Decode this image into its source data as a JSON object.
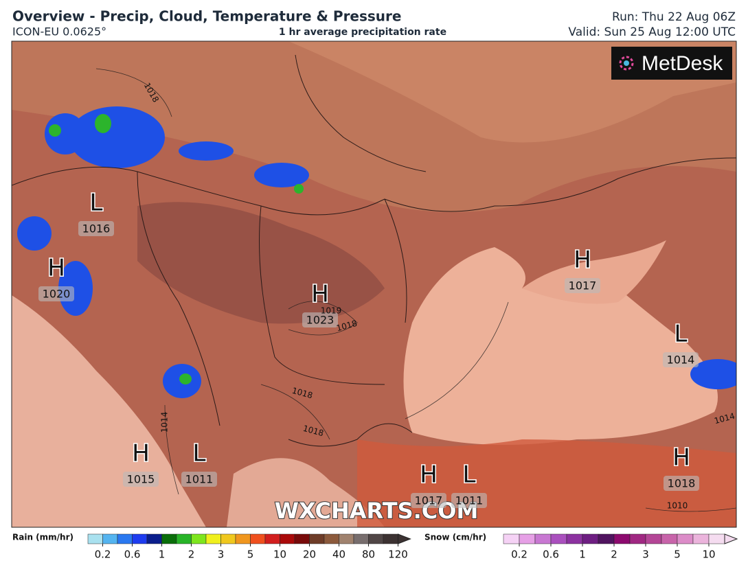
{
  "header": {
    "title": "Overview - Precip, Cloud, Temperature & Pressure",
    "model": "ICON-EU 0.0625°",
    "subtitle": "1 hr average precipitation rate",
    "run": "Run: Thu 22 Aug 06Z",
    "valid": "Valid: Sun 25 Aug 12:00 UTC"
  },
  "logo": "MetDesk",
  "watermark": "WXCHARTS.COM",
  "pressure_centers": [
    {
      "letter": "L",
      "value": 1016
    },
    {
      "letter": "H",
      "value": 1020
    },
    {
      "letter": "H",
      "value": 1023
    },
    {
      "letter": "H",
      "value": 1017
    },
    {
      "letter": "L",
      "value": 1014
    },
    {
      "letter": "H",
      "value": 1015
    },
    {
      "letter": "L",
      "value": 1011
    },
    {
      "letter": "H",
      "value": 1017
    },
    {
      "letter": "L",
      "value": 1011
    },
    {
      "letter": "H",
      "value": 1018
    }
  ],
  "isobar_labels": [
    1018,
    1019,
    1018,
    1018,
    1018,
    1014,
    1014,
    1010
  ],
  "rain_legend": {
    "title": "Rain (mm/hr)",
    "colors": [
      "#a9e1ef",
      "#54b4f0",
      "#2a78f0",
      "#1e3cf0",
      "#0a1e8c",
      "#0a6e0a",
      "#28b428",
      "#7ee61e",
      "#f0f01e",
      "#f0c81e",
      "#f0961e",
      "#f0501e",
      "#d21e1e",
      "#aa0a0a",
      "#780a0a",
      "#6e3c28",
      "#8c5a3c",
      "#a0826e",
      "#786e6e",
      "#504646",
      "#3c3232"
    ],
    "ticks": [
      0.2,
      0.6,
      1,
      2,
      3,
      5,
      10,
      20,
      40,
      80,
      120
    ]
  },
  "snow_legend": {
    "title": "Snow (cm/hr)",
    "colors": [
      "#f5d2f5",
      "#e6a0e6",
      "#c878d2",
      "#aa50be",
      "#8c32a0",
      "#6e1e82",
      "#50145f",
      "#8c0a6e",
      "#a02882",
      "#b44696",
      "#c864aa",
      "#dc8cc8",
      "#ebb4dc",
      "#f5dcf0"
    ],
    "ticks": [
      0.2,
      0.6,
      1,
      2,
      3,
      5,
      10
    ]
  }
}
